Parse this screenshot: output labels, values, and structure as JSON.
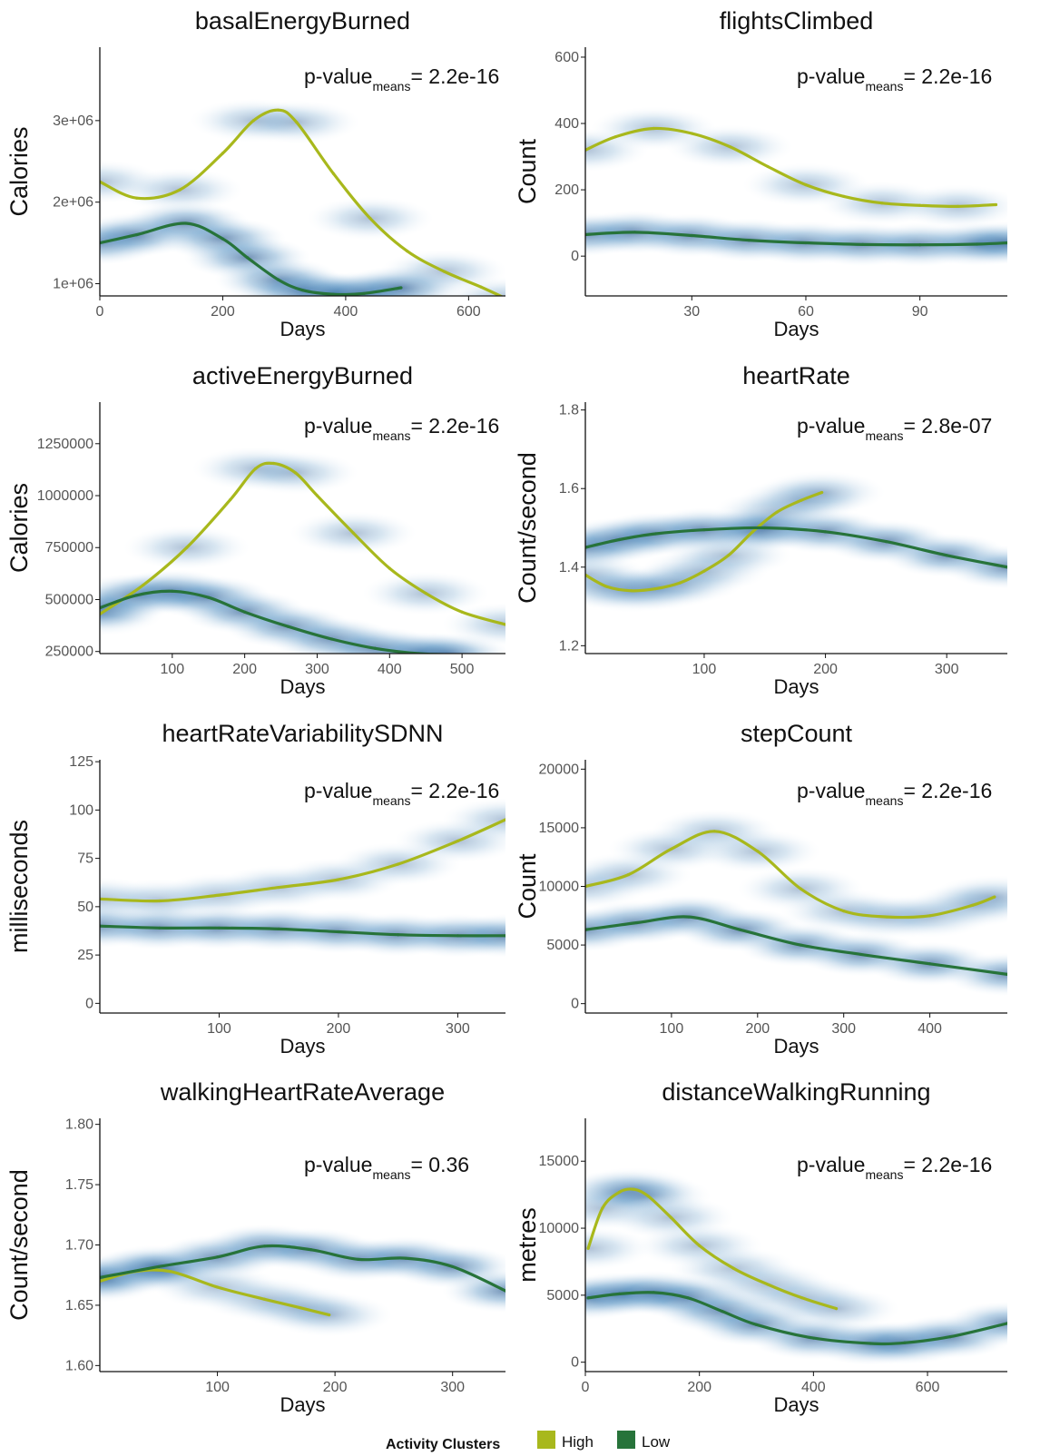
{
  "colors": {
    "high": "#a8b81c",
    "low": "#27733a",
    "density": "#0a3f7e",
    "axis": "#111111"
  },
  "legend": {
    "title": "Activity Clusters",
    "items": [
      {
        "label": "High",
        "color": "#a8b81c"
      },
      {
        "label": "Low",
        "color": "#27733a"
      }
    ]
  },
  "chart_data": [
    {
      "type": "line",
      "title": "basalEnergyBurned",
      "xlabel": "Days",
      "ylabel": "Calories",
      "xlim": [
        0,
        660
      ],
      "ylim": [
        850000,
        3900000
      ],
      "xticks": [
        0,
        200,
        400,
        600
      ],
      "yticks": [
        1000000,
        2000000,
        3000000
      ],
      "ytick_labels": [
        "1e+06",
        "2e+06",
        "3e+06"
      ],
      "pvalue": {
        "prefix": "p-value",
        "sub": "means",
        "value": "= 2.2e-16"
      },
      "series": [
        {
          "cluster": "High",
          "x": [
            0,
            60,
            130,
            200,
            250,
            290,
            320,
            380,
            440,
            500,
            560,
            620,
            660
          ],
          "y": [
            2250000,
            2050000,
            2150000,
            2600000,
            3000000,
            3130000,
            2980000,
            2350000,
            1800000,
            1400000,
            1150000,
            960000,
            820000
          ]
        },
        {
          "cluster": "Low",
          "x": [
            0,
            60,
            140,
            200,
            240,
            290,
            330,
            380,
            430,
            490
          ],
          "y": [
            1500000,
            1600000,
            1740000,
            1550000,
            1320000,
            1050000,
            920000,
            870000,
            880000,
            950000
          ]
        }
      ]
    },
    {
      "type": "line",
      "title": "flightsClimbed",
      "xlabel": "Days",
      "ylabel": "Count",
      "xlim": [
        2,
        113
      ],
      "ylim": [
        -120,
        630
      ],
      "xticks": [
        30,
        60,
        90
      ],
      "yticks": [
        0,
        200,
        400,
        600
      ],
      "ytick_labels": [
        "0",
        "200",
        "400",
        "600"
      ],
      "pvalue": {
        "prefix": "p-value",
        "sub": "means",
        "value": "= 2.2e-16"
      },
      "series": [
        {
          "cluster": "High",
          "x": [
            2,
            10,
            20,
            30,
            40,
            50,
            60,
            70,
            80,
            90,
            100,
            110
          ],
          "y": [
            320,
            360,
            385,
            370,
            330,
            270,
            215,
            180,
            160,
            153,
            150,
            155
          ]
        },
        {
          "cluster": "Low",
          "x": [
            2,
            15,
            30,
            45,
            60,
            75,
            90,
            105,
            113
          ],
          "y": [
            65,
            72,
            62,
            48,
            40,
            35,
            34,
            36,
            40
          ]
        }
      ]
    },
    {
      "type": "line",
      "title": "activeEnergyBurned",
      "xlabel": "Days",
      "ylabel": "Calories",
      "xlim": [
        0,
        560
      ],
      "ylim": [
        240000,
        1450000
      ],
      "xticks": [
        100,
        200,
        300,
        400,
        500
      ],
      "yticks": [
        250000,
        500000,
        750000,
        1000000,
        1250000
      ],
      "ytick_labels": [
        "250000",
        "500000",
        "750000",
        "1000000",
        "1250000"
      ],
      "pvalue": {
        "prefix": "p-value",
        "sub": "means",
        "value": "= 2.2e-16"
      },
      "series": [
        {
          "cluster": "High",
          "x": [
            0,
            60,
            120,
            180,
            215,
            240,
            270,
            300,
            350,
            400,
            450,
            500,
            560
          ],
          "y": [
            430000,
            570000,
            750000,
            980000,
            1130000,
            1155000,
            1110000,
            1000000,
            820000,
            650000,
            530000,
            440000,
            380000
          ]
        },
        {
          "cluster": "Low",
          "x": [
            0,
            50,
            100,
            150,
            200,
            260,
            320,
            380,
            440,
            480
          ],
          "y": [
            460000,
            520000,
            540000,
            510000,
            440000,
            370000,
            310000,
            265000,
            240000,
            235000
          ]
        }
      ]
    },
    {
      "type": "line",
      "title": "heartRate",
      "xlabel": "Days",
      "ylabel": "Count/second",
      "xlim": [
        2,
        350
      ],
      "ylim": [
        1.18,
        1.82
      ],
      "xticks": [
        100,
        200,
        300
      ],
      "yticks": [
        1.2,
        1.4,
        1.6,
        1.8
      ],
      "ytick_labels": [
        "1.2",
        "1.4",
        "1.6",
        "1.8"
      ],
      "pvalue": {
        "prefix": "p-value",
        "sub": "means",
        "value": "= 2.8e-07"
      },
      "series": [
        {
          "cluster": "High",
          "x": [
            2,
            20,
            40,
            60,
            80,
            100,
            120,
            140,
            160,
            180,
            197
          ],
          "y": [
            1.38,
            1.35,
            1.34,
            1.345,
            1.36,
            1.39,
            1.43,
            1.49,
            1.54,
            1.57,
            1.59
          ]
        },
        {
          "cluster": "Low",
          "x": [
            2,
            30,
            60,
            100,
            150,
            200,
            250,
            300,
            350
          ],
          "y": [
            1.45,
            1.47,
            1.485,
            1.495,
            1.5,
            1.49,
            1.465,
            1.43,
            1.4
          ]
        }
      ]
    },
    {
      "type": "line",
      "title": "heartRateVariabilitySDNN",
      "xlabel": "Days",
      "ylabel": "milliseconds",
      "xlim": [
        0,
        340
      ],
      "ylim": [
        -5,
        126
      ],
      "xticks": [
        100,
        200,
        300
      ],
      "yticks": [
        0,
        25,
        50,
        75,
        100,
        125
      ],
      "ytick_labels": [
        "0",
        "25",
        "50",
        "75",
        "100",
        "125"
      ],
      "pvalue": {
        "prefix": "p-value",
        "sub": "means",
        "value": "= 2.2e-16"
      },
      "series": [
        {
          "cluster": "High",
          "x": [
            0,
            50,
            100,
            150,
            200,
            250,
            300,
            340
          ],
          "y": [
            54,
            53,
            56,
            60,
            64,
            72,
            84,
            95
          ]
        },
        {
          "cluster": "Low",
          "x": [
            0,
            50,
            100,
            150,
            200,
            250,
            300,
            340
          ],
          "y": [
            40,
            39,
            39,
            38.5,
            37,
            35.5,
            35,
            35
          ]
        }
      ]
    },
    {
      "type": "line",
      "title": "stepCount",
      "xlabel": "Days",
      "ylabel": "Count",
      "xlim": [
        0,
        490
      ],
      "ylim": [
        -800,
        20800
      ],
      "xticks": [
        100,
        200,
        300,
        400
      ],
      "yticks": [
        0,
        5000,
        10000,
        15000,
        20000
      ],
      "ytick_labels": [
        "0",
        "5000",
        "10000",
        "15000",
        "20000"
      ],
      "pvalue": {
        "prefix": "p-value",
        "sub": "means",
        "value": "= 2.2e-16"
      },
      "series": [
        {
          "cluster": "High",
          "x": [
            0,
            50,
            100,
            150,
            200,
            250,
            300,
            350,
            400,
            450,
            475
          ],
          "y": [
            10000,
            11000,
            13200,
            14700,
            13000,
            9800,
            7900,
            7400,
            7500,
            8400,
            9100
          ]
        },
        {
          "cluster": "Low",
          "x": [
            0,
            60,
            120,
            180,
            250,
            320,
            400,
            490
          ],
          "y": [
            6300,
            6900,
            7400,
            6300,
            5000,
            4200,
            3400,
            2500
          ]
        }
      ]
    },
    {
      "type": "line",
      "title": "walkingHeartRateAverage",
      "xlabel": "Days",
      "ylabel": "Count/second",
      "xlim": [
        0,
        345
      ],
      "ylim": [
        1.595,
        1.805
      ],
      "xticks": [
        100,
        200,
        300
      ],
      "yticks": [
        1.6,
        1.65,
        1.7,
        1.75,
        1.8
      ],
      "ytick_labels": [
        "1.60",
        "1.65",
        "1.70",
        "1.75",
        "1.80"
      ],
      "pvalue": {
        "prefix": "p-value",
        "sub": "means",
        "value": "= 0.36"
      },
      "series": [
        {
          "cluster": "High",
          "x": [
            0,
            30,
            60,
            100,
            140,
            170,
            195
          ],
          "y": [
            1.67,
            1.678,
            1.678,
            1.665,
            1.655,
            1.648,
            1.642
          ]
        },
        {
          "cluster": "Low",
          "x": [
            0,
            50,
            100,
            140,
            180,
            220,
            260,
            300,
            345
          ],
          "y": [
            1.673,
            1.682,
            1.69,
            1.699,
            1.696,
            1.688,
            1.689,
            1.682,
            1.662
          ]
        }
      ]
    },
    {
      "type": "line",
      "title": "distanceWalkingRunning",
      "xlabel": "Days",
      "ylabel": "metres",
      "xlim": [
        0,
        740
      ],
      "ylim": [
        -700,
        18200
      ],
      "xticks": [
        0,
        200,
        400,
        600
      ],
      "yticks": [
        0,
        5000,
        10000,
        15000
      ],
      "ytick_labels": [
        "0",
        "5000",
        "10000",
        "15000"
      ],
      "pvalue": {
        "prefix": "p-value",
        "sub": "means",
        "value": "= 2.2e-16"
      },
      "series": [
        {
          "cluster": "High",
          "x": [
            5,
            30,
            60,
            85,
            110,
            150,
            200,
            260,
            320,
            380,
            440
          ],
          "y": [
            8500,
            11500,
            12700,
            12900,
            12400,
            10800,
            8700,
            7000,
            5800,
            4800,
            4000
          ]
        },
        {
          "cluster": "Low",
          "x": [
            5,
            60,
            120,
            180,
            240,
            300,
            400,
            500,
            560,
            640,
            740
          ],
          "y": [
            4800,
            5100,
            5200,
            4800,
            3800,
            2800,
            1800,
            1400,
            1450,
            1900,
            2900
          ]
        }
      ]
    }
  ]
}
